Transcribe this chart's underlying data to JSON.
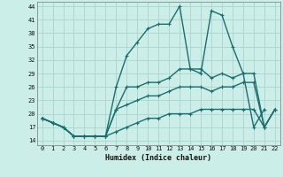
{
  "xlabel": "Humidex (Indice chaleur)",
  "bg_color": "#cceee8",
  "grid_color": "#aad4ce",
  "ylim": [
    13,
    45
  ],
  "xlim": [
    -0.5,
    22.5
  ],
  "yticks": [
    14,
    17,
    20,
    23,
    26,
    29,
    32,
    35,
    38,
    41,
    44
  ],
  "xticks": [
    0,
    1,
    2,
    3,
    4,
    5,
    6,
    7,
    8,
    9,
    10,
    11,
    12,
    13,
    14,
    15,
    16,
    17,
    18,
    19,
    20,
    21,
    22
  ],
  "series": [
    {
      "x": [
        0,
        1,
        2,
        3,
        4,
        5,
        6,
        7,
        8,
        9,
        10,
        11,
        12,
        13,
        14,
        15,
        16,
        17,
        18,
        19,
        20,
        21,
        22
      ],
      "y": [
        19,
        18,
        17,
        15,
        15,
        15,
        15,
        26,
        33,
        36,
        39,
        40,
        40,
        44,
        30,
        29,
        43,
        42,
        35,
        29,
        17,
        21,
        null
      ],
      "color": "#1a6e6e",
      "lw": 1.0
    },
    {
      "x": [
        0,
        1,
        2,
        3,
        4,
        5,
        6,
        7,
        8,
        9,
        10,
        11,
        12,
        13,
        14,
        15,
        16,
        17,
        18,
        19,
        20,
        21,
        22
      ],
      "y": [
        19,
        18,
        17,
        15,
        15,
        15,
        15,
        21,
        26,
        26,
        27,
        27,
        28,
        30,
        30,
        30,
        28,
        29,
        28,
        29,
        29,
        17,
        21
      ],
      "color": "#1a6e6e",
      "lw": 1.0
    },
    {
      "x": [
        0,
        1,
        2,
        3,
        4,
        5,
        6,
        7,
        8,
        9,
        10,
        11,
        12,
        13,
        14,
        15,
        16,
        17,
        18,
        19,
        20,
        21,
        22
      ],
      "y": [
        19,
        18,
        17,
        15,
        15,
        15,
        15,
        21,
        22,
        23,
        24,
        24,
        25,
        26,
        26,
        26,
        25,
        26,
        26,
        27,
        27,
        17,
        21
      ],
      "color": "#1a6e6e",
      "lw": 1.0
    },
    {
      "x": [
        0,
        1,
        2,
        3,
        4,
        5,
        6,
        7,
        8,
        9,
        10,
        11,
        12,
        13,
        14,
        15,
        16,
        17,
        18,
        19,
        20,
        21,
        22
      ],
      "y": [
        19,
        18,
        17,
        15,
        15,
        15,
        15,
        16,
        17,
        18,
        19,
        19,
        20,
        20,
        20,
        21,
        21,
        21,
        21,
        21,
        21,
        17,
        21
      ],
      "color": "#1a6e6e",
      "lw": 1.0
    }
  ]
}
